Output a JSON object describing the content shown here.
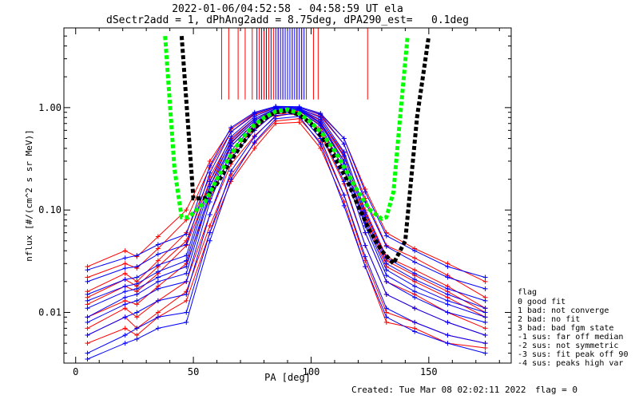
{
  "title_line1": "2022-01-06/04:52:58 - 04:58:59 UT ela",
  "title_line2": "dSectr2add = 1, dPhAng2add = 8.75deg, dPA290_est=   0.1deg",
  "footer": {
    "created": "Created: Tue Mar 08 02:02:11 2022",
    "flag": "flag = 0"
  },
  "legend": {
    "title": "flag",
    "items": [
      "0 good fit",
      "1 bad: not converge",
      "2 bad: no fit",
      "3 bad: bad fgm state",
      "-1 sus: far off median",
      "-2 sus: not symmetric",
      "-3 sus: fit peak off 90",
      "-4 sus: peaks high var"
    ]
  },
  "colors": {
    "red": "#ff0000",
    "blue": "#0000ff",
    "black": "#000000",
    "green": "#00ff00"
  },
  "chart_data": {
    "type": "line",
    "xlabel": "PA [deg]",
    "ylabel": "nflux [#/(cm^2 s sr MeV)]",
    "xlim": [
      -5,
      185
    ],
    "ylim": [
      0.0032,
      6.0
    ],
    "yscale": "log",
    "x_ticks": [
      0,
      50,
      100,
      150
    ],
    "y_ticks": [
      {
        "v": 0.01,
        "label": "0.01"
      },
      {
        "v": 0.1,
        "label": "0.10"
      },
      {
        "v": 1.0,
        "label": "1.00"
      }
    ],
    "grid": false,
    "legend_position": "right",
    "pa_bins": [
      5,
      21,
      26,
      35,
      47,
      57,
      66,
      76,
      85,
      95,
      104,
      114,
      123,
      132,
      144,
      158,
      174
    ],
    "series": [
      {
        "color": "red",
        "profiles": [
          [
            0.007,
            0.011,
            0.009,
            0.013,
            0.02,
            0.09,
            0.28,
            0.53,
            0.82,
            0.9,
            0.55,
            0.18,
            0.045,
            0.015,
            0.011,
            0.008,
            0.006
          ],
          [
            0.009,
            0.013,
            0.012,
            0.018,
            0.03,
            0.13,
            0.36,
            0.62,
            0.88,
            0.85,
            0.62,
            0.25,
            0.06,
            0.02,
            0.015,
            0.01,
            0.007
          ],
          [
            0.012,
            0.018,
            0.016,
            0.024,
            0.045,
            0.17,
            0.42,
            0.7,
            0.93,
            0.92,
            0.68,
            0.3,
            0.08,
            0.028,
            0.02,
            0.014,
            0.009
          ],
          [
            0.016,
            0.024,
            0.02,
            0.032,
            0.06,
            0.21,
            0.5,
            0.78,
            0.96,
            0.95,
            0.75,
            0.36,
            0.1,
            0.035,
            0.026,
            0.018,
            0.011
          ],
          [
            0.022,
            0.03,
            0.027,
            0.042,
            0.08,
            0.26,
            0.58,
            0.85,
            1.0,
            0.97,
            0.82,
            0.44,
            0.13,
            0.045,
            0.034,
            0.023,
            0.014
          ],
          [
            0.006,
            0.009,
            0.007,
            0.01,
            0.016,
            0.07,
            0.22,
            0.45,
            0.74,
            0.78,
            0.46,
            0.14,
            0.032,
            0.01,
            0.008,
            0.006,
            0.005
          ],
          [
            0.005,
            0.007,
            0.006,
            0.009,
            0.013,
            0.06,
            0.19,
            0.4,
            0.7,
            0.72,
            0.4,
            0.12,
            0.028,
            0.008,
            0.007,
            0.005,
            0.0045
          ],
          [
            0.014,
            0.021,
            0.018,
            0.028,
            0.05,
            0.19,
            0.46,
            0.75,
            0.95,
            0.94,
            0.72,
            0.33,
            0.09,
            0.032,
            0.023,
            0.016,
            0.01
          ],
          [
            0.028,
            0.04,
            0.035,
            0.055,
            0.1,
            0.3,
            0.62,
            0.88,
            1.02,
            1.0,
            0.86,
            0.5,
            0.16,
            0.06,
            0.042,
            0.03,
            0.02
          ]
        ]
      },
      {
        "color": "blue",
        "profiles": [
          [
            0.004,
            0.006,
            0.007,
            0.009,
            0.01,
            0.06,
            0.24,
            0.52,
            0.84,
            0.88,
            0.5,
            0.14,
            0.035,
            0.011,
            0.008,
            0.006,
            0.005
          ],
          [
            0.006,
            0.009,
            0.01,
            0.013,
            0.015,
            0.09,
            0.32,
            0.6,
            0.9,
            0.9,
            0.58,
            0.19,
            0.045,
            0.015,
            0.011,
            0.008,
            0.006
          ],
          [
            0.008,
            0.012,
            0.013,
            0.017,
            0.02,
            0.12,
            0.38,
            0.68,
            0.94,
            0.94,
            0.66,
            0.25,
            0.06,
            0.02,
            0.014,
            0.01,
            0.008
          ],
          [
            0.011,
            0.016,
            0.017,
            0.022,
            0.028,
            0.15,
            0.45,
            0.75,
            0.97,
            0.96,
            0.72,
            0.3,
            0.075,
            0.026,
            0.018,
            0.013,
            0.01
          ],
          [
            0.015,
            0.021,
            0.022,
            0.029,
            0.036,
            0.19,
            0.52,
            0.82,
            1.0,
            0.98,
            0.8,
            0.37,
            0.095,
            0.034,
            0.024,
            0.017,
            0.013
          ],
          [
            0.02,
            0.027,
            0.028,
            0.037,
            0.046,
            0.23,
            0.58,
            0.87,
            1.02,
            1.0,
            0.85,
            0.44,
            0.12,
            0.044,
            0.031,
            0.022,
            0.017
          ],
          [
            0.0035,
            0.005,
            0.0055,
            0.007,
            0.008,
            0.05,
            0.2,
            0.46,
            0.78,
            0.82,
            0.44,
            0.11,
            0.028,
            0.009,
            0.0065,
            0.005,
            0.004
          ],
          [
            0.026,
            0.034,
            0.036,
            0.046,
            0.058,
            0.27,
            0.64,
            0.9,
            1.03,
            1.02,
            0.88,
            0.5,
            0.15,
            0.056,
            0.04,
            0.028,
            0.022
          ],
          [
            0.009,
            0.014,
            0.015,
            0.02,
            0.024,
            0.14,
            0.42,
            0.72,
            0.95,
            0.95,
            0.7,
            0.28,
            0.07,
            0.023,
            0.016,
            0.012,
            0.009
          ],
          [
            0.013,
            0.018,
            0.019,
            0.025,
            0.032,
            0.17,
            0.48,
            0.78,
            0.98,
            0.97,
            0.76,
            0.34,
            0.085,
            0.03,
            0.021,
            0.015,
            0.011
          ]
        ]
      },
      {
        "color": "black",
        "x": [
          45,
          50,
          55,
          60,
          65,
          70,
          75,
          80,
          85,
          90,
          95,
          100,
          105,
          110,
          115,
          120,
          125,
          130,
          135,
          140,
          145,
          150
        ],
        "y": [
          5.0,
          0.13,
          0.13,
          0.18,
          0.28,
          0.42,
          0.6,
          0.78,
          0.9,
          0.93,
          0.85,
          0.7,
          0.5,
          0.33,
          0.2,
          0.11,
          0.062,
          0.04,
          0.03,
          0.05,
          0.8,
          5.0
        ]
      },
      {
        "color": "green",
        "x": [
          38,
          42,
          45,
          48,
          55,
          60,
          65,
          70,
          75,
          80,
          85,
          90,
          95,
          100,
          105,
          110,
          115,
          120,
          125,
          130,
          132,
          135,
          138,
          141
        ],
        "y": [
          5.0,
          0.25,
          0.085,
          0.085,
          0.12,
          0.2,
          0.32,
          0.48,
          0.65,
          0.8,
          0.92,
          0.96,
          0.88,
          0.72,
          0.55,
          0.38,
          0.24,
          0.15,
          0.1,
          0.082,
          0.085,
          0.15,
          0.9,
          5.0
        ]
      }
    ],
    "vertical_bars": {
      "red": [
        62,
        65,
        69,
        72,
        75,
        78,
        80,
        82,
        84,
        86,
        88,
        90,
        92,
        94,
        96,
        98,
        101,
        103,
        124
      ],
      "blue": [
        77,
        79,
        81,
        83,
        85,
        86,
        87,
        88,
        89,
        90,
        91,
        92,
        93,
        94,
        95,
        96,
        97
      ],
      "y_top": 6.0,
      "y_bottom": 1.2
    }
  }
}
